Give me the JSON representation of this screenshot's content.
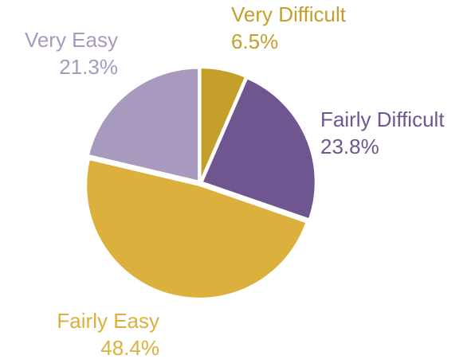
{
  "chart_data": {
    "type": "pie",
    "categories": [
      "Very Difficult",
      "Fairly Difficult",
      "Fairly Easy",
      "Very Easy"
    ],
    "values": [
      6.5,
      23.8,
      48.4,
      21.3
    ],
    "value_labels": [
      "6.5%",
      "23.8%",
      "48.4%",
      "21.3%"
    ],
    "colors": [
      "#c4a02a",
      "#6f5690",
      "#dbb03c",
      "#a899bf"
    ]
  }
}
